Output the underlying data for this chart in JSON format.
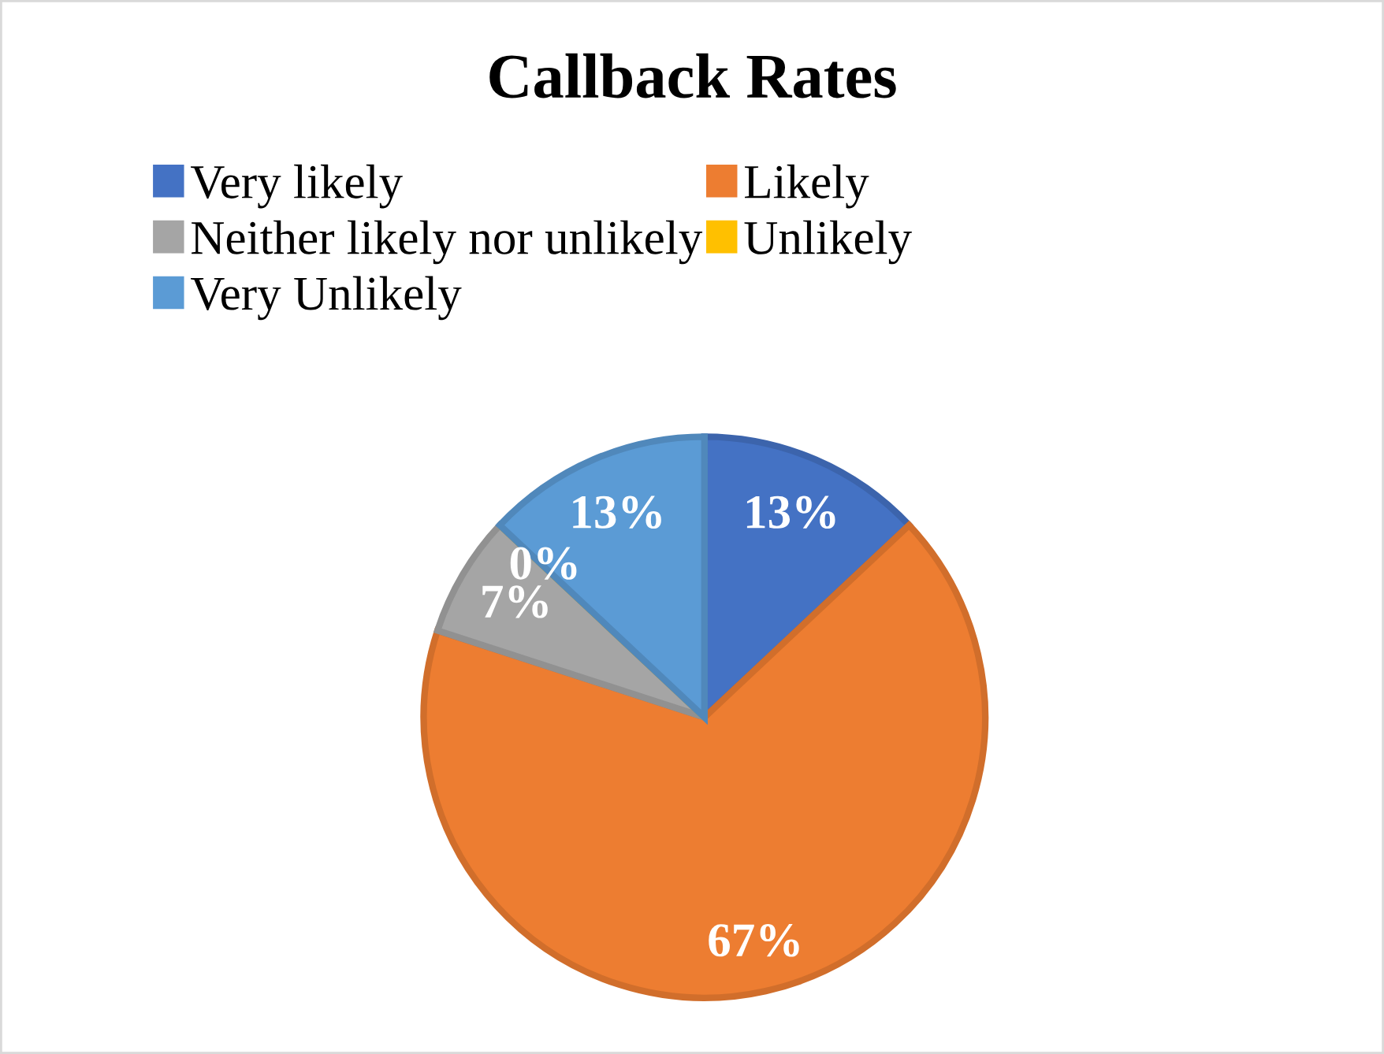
{
  "chart_data": {
    "type": "pie",
    "title": "Callback Rates",
    "categories": [
      "Very likely",
      "Likely",
      "Neither likely nor unlikely",
      "Unlikely",
      "Very Unlikely"
    ],
    "values": [
      13,
      67,
      7,
      0,
      13
    ],
    "colors": [
      "#4472c4",
      "#ed7d31",
      "#a5a5a5",
      "#ffc000",
      "#5b9bd5"
    ],
    "value_labels": [
      "13%",
      "67%",
      "7%",
      "0%",
      "13%"
    ],
    "legend": "top"
  }
}
